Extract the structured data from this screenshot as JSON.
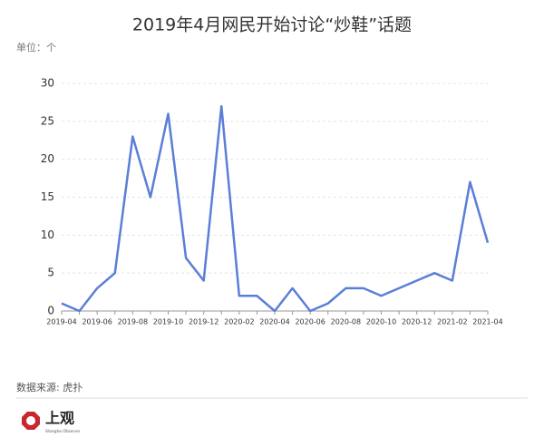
{
  "chart_data": {
    "type": "line",
    "title": "2019年4月网民开始讨论“炒鞋”话题",
    "unit_label": "单位：个",
    "categories": [
      "2019-04",
      null,
      "2019-06",
      null,
      "2019-08",
      null,
      "2019-10",
      null,
      "2019-12",
      null,
      "2020-02",
      null,
      "2020-04",
      null,
      "2020-06",
      null,
      "2020-08",
      null,
      "2020-10",
      null,
      "2020-12",
      null,
      "2021-02",
      null,
      "2021-04"
    ],
    "series": [
      {
        "color": "#5b7fd6",
        "values": [
          1,
          0,
          3,
          5,
          23,
          15,
          26,
          7,
          4,
          27,
          2,
          2,
          0,
          3,
          0,
          1,
          3,
          3,
          2,
          3,
          4,
          5,
          4,
          17,
          9
        ]
      }
    ],
    "ylim": [
      0,
      30
    ],
    "yticks": [
      0,
      5,
      10,
      15,
      20,
      25,
      30
    ],
    "grid": true
  },
  "footer": {
    "source": "数据来源: 虎扑",
    "logo": "上观",
    "logo_sub": "Shanghai Observer"
  }
}
